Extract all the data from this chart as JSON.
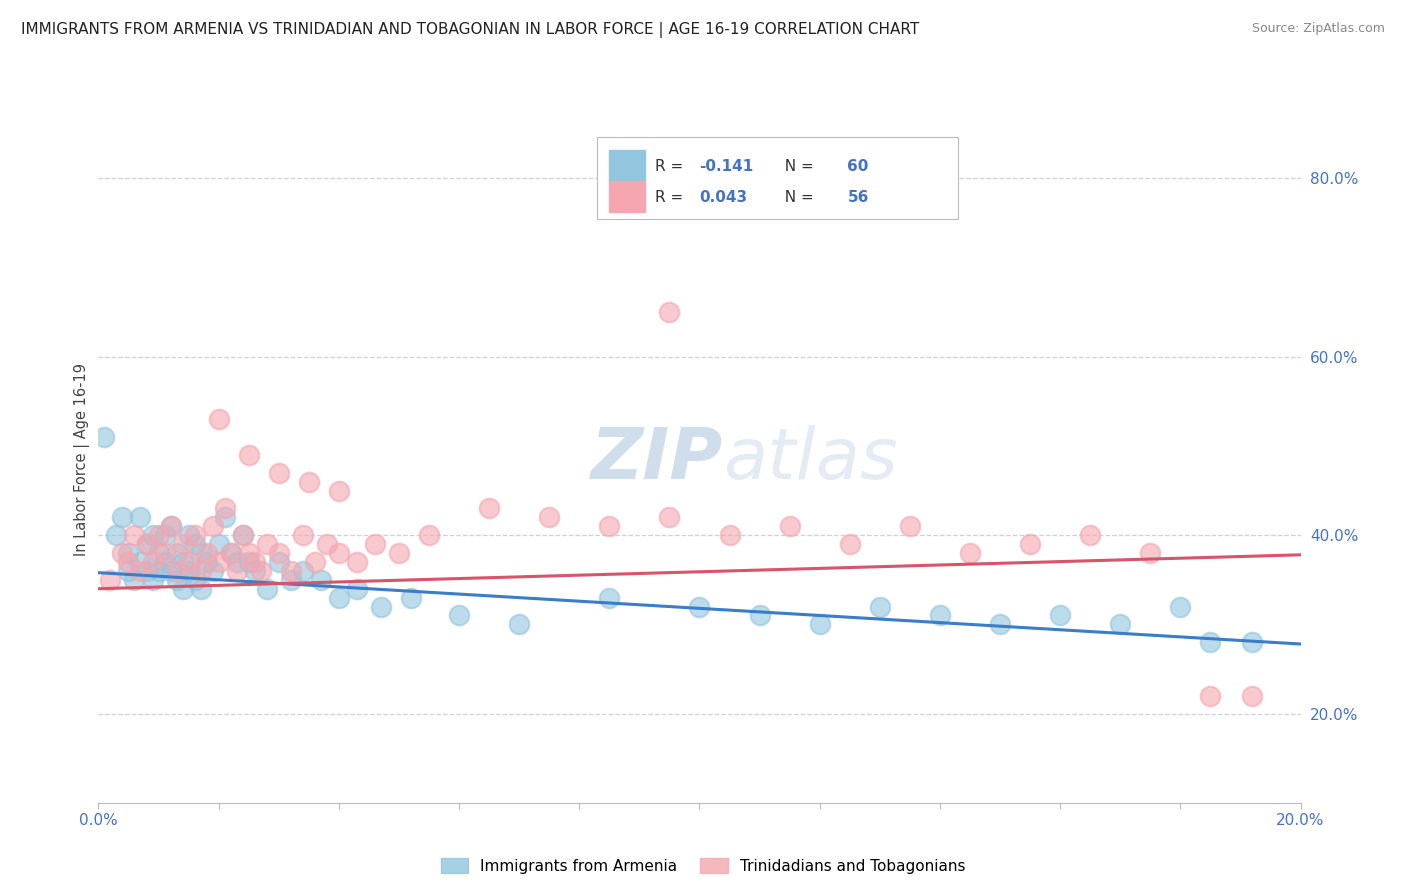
{
  "title": "IMMIGRANTS FROM ARMENIA VS TRINIDADIAN AND TOBAGONIAN IN LABOR FORCE | AGE 16-19 CORRELATION CHART",
  "source": "Source: ZipAtlas.com",
  "ylabel": "In Labor Force | Age 16-19",
  "ylabel_right_ticks": [
    "20.0%",
    "40.0%",
    "60.0%",
    "80.0%"
  ],
  "ylabel_right_values": [
    0.2,
    0.4,
    0.6,
    0.8
  ],
  "legend_armenia_r": "R = -0.141",
  "legend_armenia_n": "N = 60",
  "legend_tt_r": "R = 0.043",
  "legend_tt_n": "N = 56",
  "legend_label_armenia": "Immigrants from Armenia",
  "legend_label_tt": "Trinidadians and Tobagonians",
  "color_armenia": "#92c5de",
  "color_tt": "#f4a6b0",
  "color_armenia_line": "#3a7dc9",
  "color_tt_line": "#d9546a",
  "background_color": "#ffffff",
  "grid_color": "#cccccc",
  "xlim": [
    0.0,
    0.2
  ],
  "ylim": [
    0.1,
    0.87
  ],
  "watermark_zip": "ZIP",
  "watermark_atlas": "atlas",
  "armenia_scatter_x": [
    0.001,
    0.003,
    0.004,
    0.005,
    0.005,
    0.006,
    0.007,
    0.007,
    0.008,
    0.008,
    0.009,
    0.009,
    0.01,
    0.01,
    0.011,
    0.011,
    0.012,
    0.012,
    0.013,
    0.013,
    0.014,
    0.014,
    0.015,
    0.015,
    0.016,
    0.016,
    0.017,
    0.017,
    0.018,
    0.019,
    0.02,
    0.021,
    0.022,
    0.023,
    0.024,
    0.025,
    0.026,
    0.028,
    0.03,
    0.032,
    0.034,
    0.037,
    0.04,
    0.043,
    0.047,
    0.052,
    0.06,
    0.07,
    0.085,
    0.1,
    0.11,
    0.12,
    0.13,
    0.14,
    0.15,
    0.16,
    0.17,
    0.18,
    0.185,
    0.192
  ],
  "armenia_scatter_y": [
    0.51,
    0.4,
    0.42,
    0.38,
    0.36,
    0.35,
    0.42,
    0.37,
    0.39,
    0.36,
    0.4,
    0.35,
    0.38,
    0.36,
    0.4,
    0.37,
    0.41,
    0.36,
    0.38,
    0.35,
    0.37,
    0.34,
    0.4,
    0.36,
    0.39,
    0.35,
    0.38,
    0.34,
    0.37,
    0.36,
    0.39,
    0.42,
    0.38,
    0.37,
    0.4,
    0.37,
    0.36,
    0.34,
    0.37,
    0.35,
    0.36,
    0.35,
    0.33,
    0.34,
    0.32,
    0.33,
    0.31,
    0.3,
    0.33,
    0.32,
    0.31,
    0.3,
    0.32,
    0.31,
    0.3,
    0.31,
    0.3,
    0.32,
    0.28,
    0.28
  ],
  "tt_scatter_x": [
    0.002,
    0.004,
    0.005,
    0.006,
    0.007,
    0.008,
    0.009,
    0.01,
    0.011,
    0.012,
    0.013,
    0.014,
    0.015,
    0.016,
    0.017,
    0.018,
    0.019,
    0.02,
    0.021,
    0.022,
    0.023,
    0.024,
    0.025,
    0.026,
    0.027,
    0.028,
    0.03,
    0.032,
    0.034,
    0.036,
    0.038,
    0.04,
    0.043,
    0.046,
    0.05,
    0.055,
    0.065,
    0.075,
    0.085,
    0.095,
    0.105,
    0.115,
    0.125,
    0.135,
    0.145,
    0.155,
    0.165,
    0.175,
    0.185,
    0.192,
    0.095,
    0.02,
    0.025,
    0.03,
    0.035,
    0.04
  ],
  "tt_scatter_y": [
    0.35,
    0.38,
    0.37,
    0.4,
    0.36,
    0.39,
    0.37,
    0.4,
    0.38,
    0.41,
    0.36,
    0.39,
    0.37,
    0.4,
    0.36,
    0.38,
    0.41,
    0.37,
    0.43,
    0.38,
    0.36,
    0.4,
    0.38,
    0.37,
    0.36,
    0.39,
    0.38,
    0.36,
    0.4,
    0.37,
    0.39,
    0.38,
    0.37,
    0.39,
    0.38,
    0.4,
    0.43,
    0.42,
    0.41,
    0.42,
    0.4,
    0.41,
    0.39,
    0.41,
    0.38,
    0.39,
    0.4,
    0.38,
    0.22,
    0.22,
    0.65,
    0.53,
    0.49,
    0.47,
    0.46,
    0.45
  ],
  "armenia_line_x": [
    0.0,
    0.2
  ],
  "armenia_line_y": [
    0.358,
    0.278
  ],
  "tt_line_x": [
    0.0,
    0.2
  ],
  "tt_line_y": [
    0.34,
    0.378
  ]
}
